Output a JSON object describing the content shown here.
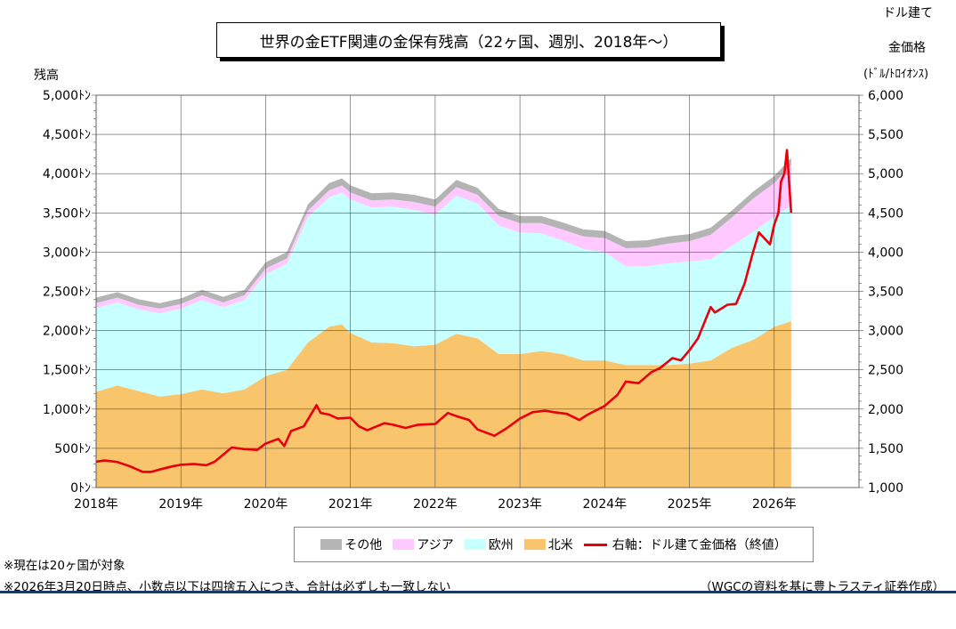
{
  "title": "世界の金ETF関連の金保有残高（22ヶ国、週別、2018年～）",
  "left_axis_label": "残高",
  "right_axis_label_line1": "ドル建て",
  "right_axis_label_line2": "金価格",
  "right_axis_label_line3": "(ﾄﾞﾙ/ﾄﾛｲｵﾝｽ)",
  "notes": {
    "note1": "※現在は20ヶ国が対象",
    "note2": "※2026年3月20日時点、小数点以下は四捨五入につき、合計は必ずしも一致しない",
    "source": "（WGCの資料を基に豊トラスティ証券作成）"
  },
  "legend": {
    "other": "その他",
    "asia": "アジア",
    "europe": "欧州",
    "north_america": "北米",
    "price": "右軸：ドル建て金価格（終値）"
  },
  "colors": {
    "other": "#b4b4b4",
    "asia": "#ffc8ff",
    "europe": "#c8ffff",
    "north_america": "#f8c46c",
    "price": "#e8000b"
  },
  "chart_data": {
    "type": "area",
    "x_unit": "year",
    "xlim": [
      2018.0,
      2027.0
    ],
    "left_ylim": [
      0,
      5000
    ],
    "right_ylim": [
      1000,
      6000
    ],
    "left_ticks": [
      "0ﾄﾝ",
      "500ﾄﾝ",
      "1,000ﾄﾝ",
      "1,500ﾄﾝ",
      "2,000ﾄﾝ",
      "2,500ﾄﾝ",
      "3,000ﾄﾝ",
      "3,500ﾄﾝ",
      "4,000ﾄﾝ",
      "4,500ﾄﾝ",
      "5,000ﾄﾝ"
    ],
    "right_ticks": [
      "1,000",
      "1,500",
      "2,000",
      "2,500",
      "3,000",
      "3,500",
      "4,000",
      "4,500",
      "5,000",
      "5,500",
      "6,000"
    ],
    "x_ticks": [
      "2018年",
      "2019年",
      "2020年",
      "2021年",
      "2022年",
      "2023年",
      "2024年",
      "2025年",
      "2026年"
    ],
    "grid": true,
    "x": [
      2018.0,
      2018.25,
      2018.5,
      2018.75,
      2019.0,
      2019.25,
      2019.5,
      2019.75,
      2020.0,
      2020.25,
      2020.5,
      2020.75,
      2020.9,
      2021.0,
      2021.25,
      2021.5,
      2021.75,
      2022.0,
      2022.25,
      2022.5,
      2022.75,
      2023.0,
      2023.25,
      2023.5,
      2023.75,
      2024.0,
      2024.25,
      2024.5,
      2024.75,
      2025.0,
      2025.25,
      2025.5,
      2025.75,
      2026.0,
      2026.2
    ],
    "series": [
      {
        "name": "北米",
        "values": [
          1220,
          1300,
          1230,
          1160,
          1190,
          1250,
          1200,
          1250,
          1420,
          1500,
          1850,
          2050,
          2080,
          1970,
          1850,
          1840,
          1800,
          1820,
          1960,
          1900,
          1700,
          1700,
          1740,
          1700,
          1620,
          1620,
          1560,
          1560,
          1560,
          1580,
          1620,
          1780,
          1880,
          2050,
          2120
        ]
      },
      {
        "name": "欧州",
        "values": [
          1070,
          1060,
          1040,
          1060,
          1090,
          1140,
          1100,
          1140,
          1300,
          1350,
          1600,
          1650,
          1680,
          1700,
          1720,
          1740,
          1740,
          1660,
          1760,
          1720,
          1640,
          1550,
          1500,
          1450,
          1420,
          1380,
          1260,
          1260,
          1300,
          1300,
          1290,
          1300,
          1380,
          1400,
          1470
        ]
      },
      {
        "name": "アジア",
        "values": [
          60,
          60,
          60,
          60,
          60,
          60,
          60,
          60,
          70,
          70,
          80,
          90,
          90,
          90,
          90,
          90,
          100,
          100,
          110,
          110,
          120,
          120,
          130,
          140,
          160,
          180,
          230,
          240,
          250,
          260,
          310,
          360,
          420,
          430,
          520
        ]
      },
      {
        "name": "その他",
        "values": [
          70,
          70,
          70,
          70,
          70,
          70,
          70,
          70,
          80,
          80,
          80,
          90,
          90,
          90,
          90,
          90,
          90,
          90,
          90,
          90,
          90,
          90,
          90,
          90,
          90,
          90,
          90,
          90,
          90,
          90,
          90,
          90,
          90,
          90,
          90
        ]
      }
    ],
    "price": {
      "name": "右軸：ドル建て金価格（終値）",
      "axis": "right",
      "x": [
        2018.0,
        2018.1,
        2018.25,
        2018.4,
        2018.55,
        2018.65,
        2018.75,
        2018.9,
        2019.0,
        2019.15,
        2019.3,
        2019.4,
        2019.5,
        2019.6,
        2019.75,
        2019.9,
        2020.0,
        2020.15,
        2020.22,
        2020.3,
        2020.45,
        2020.6,
        2020.65,
        2020.75,
        2020.85,
        2021.0,
        2021.1,
        2021.2,
        2021.4,
        2021.5,
        2021.65,
        2021.8,
        2022.0,
        2022.15,
        2022.25,
        2022.4,
        2022.5,
        2022.7,
        2022.85,
        2023.0,
        2023.15,
        2023.3,
        2023.4,
        2023.55,
        2023.7,
        2023.8,
        2024.0,
        2024.15,
        2024.25,
        2024.4,
        2024.55,
        2024.65,
        2024.8,
        2024.9,
        2025.0,
        2025.1,
        2025.25,
        2025.3,
        2025.45,
        2025.55,
        2025.65,
        2025.75,
        2025.82,
        2025.95,
        2026.0,
        2026.05,
        2026.08,
        2026.12,
        2026.15,
        2026.2
      ],
      "values": [
        1330,
        1345,
        1325,
        1270,
        1200,
        1200,
        1230,
        1270,
        1290,
        1300,
        1285,
        1330,
        1420,
        1510,
        1490,
        1480,
        1560,
        1620,
        1530,
        1720,
        1780,
        2050,
        1950,
        1930,
        1880,
        1890,
        1780,
        1730,
        1820,
        1800,
        1760,
        1800,
        1810,
        1950,
        1910,
        1860,
        1740,
        1660,
        1760,
        1880,
        1960,
        1980,
        1960,
        1940,
        1860,
        1930,
        2040,
        2180,
        2350,
        2330,
        2470,
        2520,
        2650,
        2620,
        2750,
        2900,
        3300,
        3230,
        3330,
        3340,
        3600,
        4000,
        4250,
        4100,
        4350,
        4500,
        4900,
        5000,
        5300,
        4500
      ]
    }
  }
}
